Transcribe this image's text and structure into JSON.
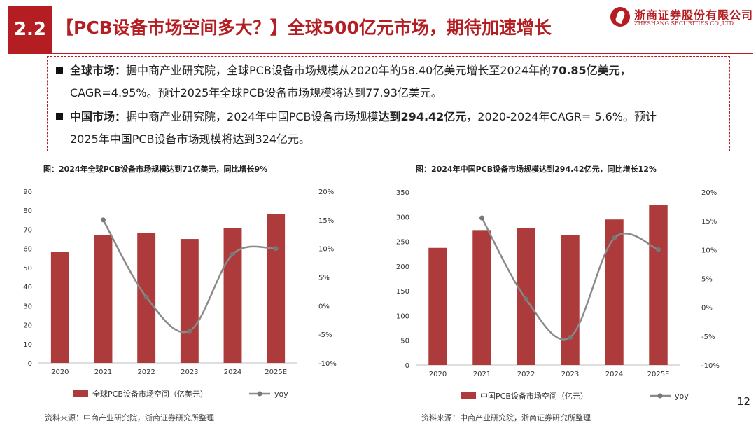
{
  "header": {
    "number": "2.2",
    "title": "【PCB设备市场空间多大？】全球500亿元市场，期待加速增长"
  },
  "logo": {
    "name_cn": "浙商证券股份有限公司",
    "name_en": "ZHESHANG SECURITIES CO.,LTD"
  },
  "summary": {
    "global": {
      "label": "全球市场：",
      "text1": "据中商产业研究院，全球PCB设备市场规模从2020年的58.40亿美元增长至2024年的",
      "highlight": "70.85亿美元",
      "text2": "，",
      "line2": "CAGR=4.95%。预计2025年全球PCB设备市场规模将达到77.93亿美元。"
    },
    "china": {
      "label": "中国市场：",
      "text1": "据中商产业研究院，2024年中国PCB设备市场规模",
      "highlight": "达到294.42亿元",
      "text2": "，2020-2024年CAGR= 5.6%。预计",
      "line2": "2025年中国PCB设备市场规模将达到324亿元。"
    }
  },
  "chart_data": [
    {
      "type": "bar",
      "title": "图：2024年全球PCB设备市场规模达到71亿美元，同比增长9%",
      "categories": [
        "2020",
        "2021",
        "2022",
        "2023",
        "2024",
        "2025E"
      ],
      "series": [
        {
          "name": "全球PCB设备市场空间（亿美元）",
          "type": "bar",
          "axis": "left",
          "values": [
            58.4,
            67,
            68,
            65,
            70.85,
            77.93
          ]
        },
        {
          "name": "yoy",
          "type": "line",
          "axis": "right",
          "values": [
            null,
            15,
            1.5,
            -4.4,
            9,
            10
          ]
        }
      ],
      "y_left": {
        "min": 0,
        "max": 90,
        "ticks": [
          "0",
          "10",
          "20",
          "30",
          "40",
          "50",
          "60",
          "70",
          "80",
          "90"
        ]
      },
      "y_right": {
        "min": -10,
        "max": 20,
        "ticks": [
          "-10%",
          "-5%",
          "0%",
          "5%",
          "10%",
          "15%",
          "20%"
        ]
      },
      "legend": "bottom",
      "grid": false,
      "colors": {
        "bar": "#ad3b3b",
        "line": "#8a8a8a"
      }
    },
    {
      "type": "bar",
      "title": "图：2024年中国PCB设备市场规模达到294.42亿元，同比增长12%",
      "categories": [
        "2020",
        "2021",
        "2022",
        "2023",
        "2024",
        "2025E"
      ],
      "series": [
        {
          "name": "中国PCB设备市场空间（亿元）",
          "type": "bar",
          "axis": "left",
          "values": [
            237,
            273,
            277,
            263,
            294.42,
            324
          ]
        },
        {
          "name": "yoy",
          "type": "line",
          "axis": "right",
          "values": [
            null,
            15.5,
            1.4,
            -5.2,
            12,
            10
          ]
        }
      ],
      "y_left": {
        "min": 0,
        "max": 350,
        "ticks": [
          "0",
          "50",
          "100",
          "150",
          "200",
          "250",
          "300",
          "350"
        ]
      },
      "y_right": {
        "min": -10,
        "max": 20,
        "ticks": [
          "-10%",
          "-5%",
          "0%",
          "5%",
          "10%",
          "15%",
          "20%"
        ]
      },
      "legend": "bottom",
      "grid": false,
      "colors": {
        "bar": "#ad3b3b",
        "line": "#8a8a8a"
      }
    }
  ],
  "sources": {
    "left": "资料来源：中商产业研究院，浙商证券研究所整理",
    "right": "资料来源：中商产业研究院，浙商证券研究所整理"
  },
  "page_number": "12"
}
